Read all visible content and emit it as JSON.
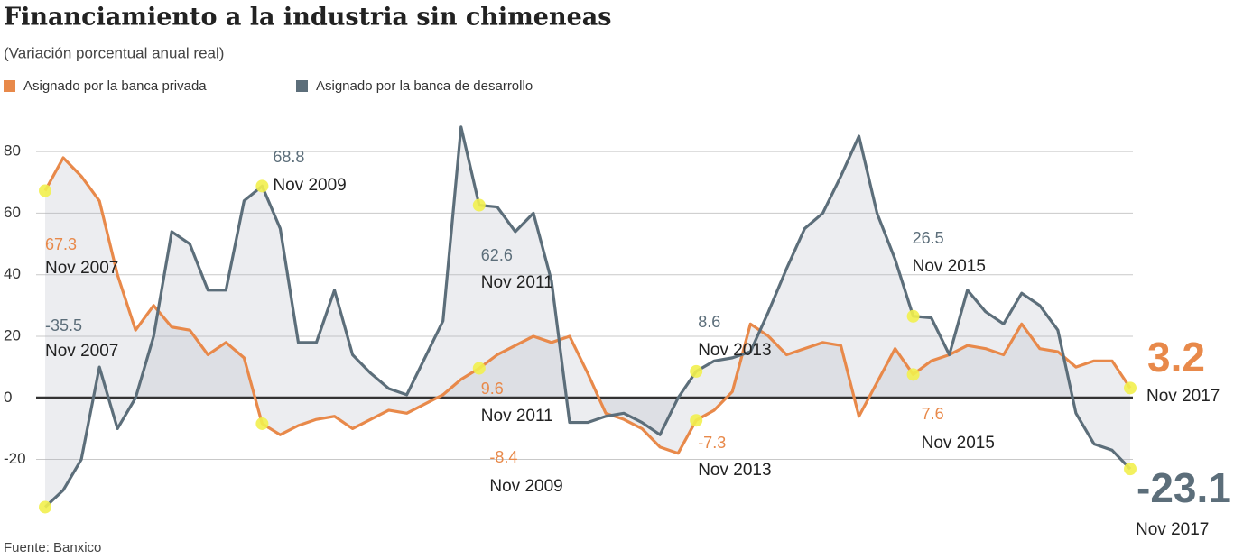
{
  "chart_data": {
    "type": "line",
    "title": "Financiamiento a la industria sin chimeneas",
    "subtitle": "(Variación porcentual anual real)",
    "source": "Fuente: Banxico",
    "categories": [
      "Nov 2007",
      null,
      null,
      null,
      null,
      null,
      null,
      null,
      null,
      null,
      null,
      null,
      "Nov 2009",
      null,
      null,
      null,
      null,
      null,
      null,
      null,
      null,
      null,
      null,
      null,
      "Nov 2011",
      null,
      null,
      null,
      null,
      null,
      null,
      null,
      null,
      null,
      null,
      null,
      "Nov 2013",
      null,
      null,
      null,
      null,
      null,
      null,
      null,
      null,
      null,
      null,
      null,
      "Nov 2015",
      null,
      null,
      null,
      null,
      null,
      null,
      null,
      null,
      null,
      null,
      null,
      "Nov 2017"
    ],
    "series": [
      {
        "name": "Asignado por la banca  privada",
        "color": "#e8894a",
        "values": [
          67.3,
          78,
          72,
          64,
          40,
          22,
          30,
          23,
          22,
          14,
          18,
          13,
          -8.4,
          -12,
          -9,
          -7,
          -6,
          -10,
          -7,
          -4,
          -5,
          -2,
          1,
          6,
          9.6,
          14,
          17,
          20,
          18,
          20,
          8,
          -5,
          -7,
          -10,
          -16,
          -18,
          -7.3,
          -4,
          2,
          24,
          20,
          14,
          16,
          18,
          17,
          -6,
          5,
          16,
          7.6,
          12,
          14,
          17,
          16,
          14,
          24,
          16,
          15,
          10,
          12,
          12,
          3.2
        ]
      },
      {
        "name": "Asignado por la banca de desarrollo",
        "color": "#5c6e7a",
        "values": [
          -35.5,
          -30,
          -20,
          10,
          -10,
          0,
          20,
          54,
          50,
          35,
          35,
          64,
          68.8,
          55,
          18,
          18,
          35,
          14,
          8,
          3,
          1,
          13,
          25,
          88,
          62.6,
          62,
          54,
          60,
          38,
          -8,
          -8,
          -6,
          -5,
          -8,
          -12,
          0,
          8.6,
          12,
          13,
          15,
          28,
          42,
          55,
          60,
          72,
          85,
          60,
          45,
          26.5,
          26,
          14,
          35,
          28,
          24,
          34,
          30,
          22,
          -5,
          -15,
          -17,
          -23.1
        ]
      }
    ],
    "ylim": [
      -38,
      90
    ],
    "yticks": [
      -20,
      0,
      20,
      40,
      60,
      80
    ],
    "grid": true
  }
}
